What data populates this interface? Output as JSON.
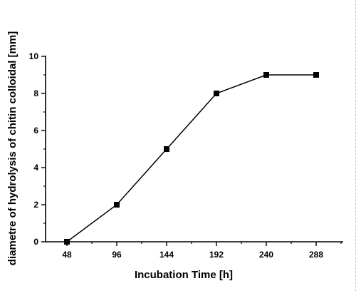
{
  "chart_data": {
    "type": "line",
    "title": "",
    "xlabel": "Incubation Time [h]",
    "ylabel": "diametre of hydrolysis of chitin colloidal [mm]",
    "x": [
      48,
      96,
      144,
      192,
      240,
      288
    ],
    "series": [
      {
        "values": [
          0,
          2,
          5,
          8,
          9,
          9
        ]
      }
    ],
    "x_ticks": [
      "48",
      "96",
      "144",
      "192",
      "240",
      "288"
    ],
    "y_ticks": [
      "0",
      "2",
      "4",
      "6",
      "8",
      "10"
    ],
    "ylim": [
      0,
      10
    ],
    "grid": false,
    "marker": "square",
    "color": "#000000"
  }
}
